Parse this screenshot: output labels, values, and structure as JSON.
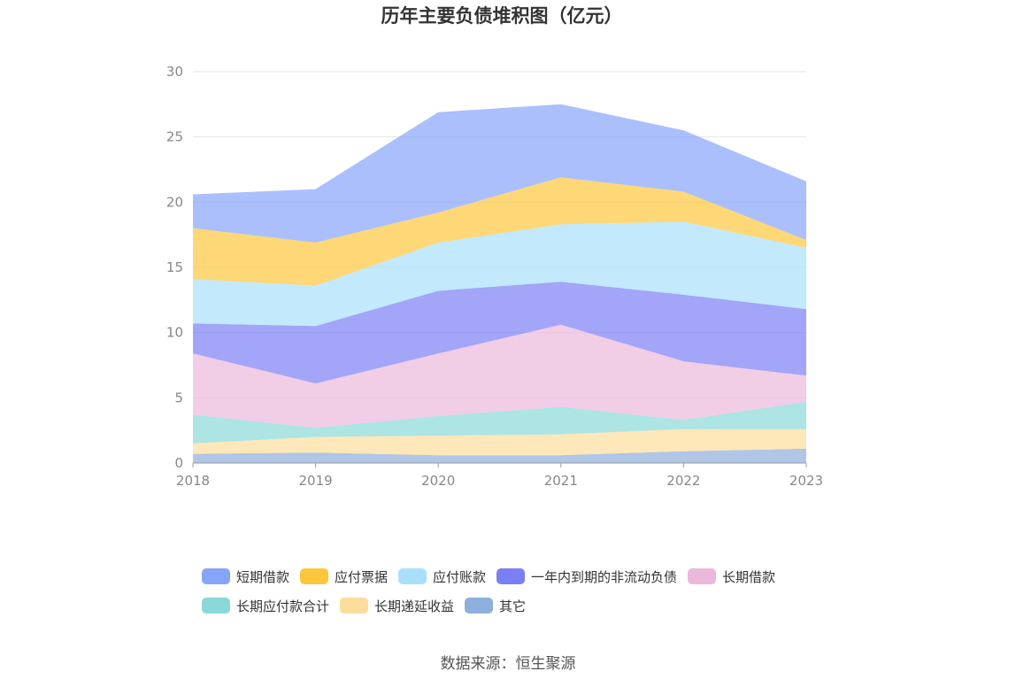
{
  "chart_data": {
    "type": "area",
    "stacked": true,
    "title": "历年主要负债堆积图（亿元）",
    "x": [
      "2018",
      "2019",
      "2020",
      "2021",
      "2022",
      "2023"
    ],
    "ylim": [
      0,
      30
    ],
    "yticks": [
      0,
      5,
      10,
      15,
      20,
      25,
      30
    ],
    "grid": true,
    "legend_position": "bottom",
    "series": [
      {
        "name": "其它",
        "color": "#8eaedb",
        "values": [
          0.7,
          0.8,
          0.6,
          0.6,
          0.9,
          1.1
        ]
      },
      {
        "name": "长期递延收益",
        "color": "#fddd9b",
        "values": [
          0.8,
          1.2,
          1.5,
          1.6,
          1.7,
          1.5
        ]
      },
      {
        "name": "长期应付款合计",
        "color": "#8ad8d8",
        "values": [
          2.2,
          0.7,
          1.5,
          2.1,
          0.7,
          2.1
        ]
      },
      {
        "name": "长期借款",
        "color": "#ebb8dc",
        "values": [
          4.7,
          3.4,
          4.8,
          6.3,
          4.5,
          2.0
        ]
      },
      {
        "name": "一年内到期的非流动负债",
        "color": "#7b7ff5",
        "values": [
          2.3,
          4.4,
          4.8,
          3.3,
          5.1,
          5.1
        ]
      },
      {
        "name": "应付账款",
        "color": "#a8e0fb",
        "values": [
          3.4,
          3.1,
          3.7,
          4.4,
          5.6,
          4.7
        ]
      },
      {
        "name": "应付票据",
        "color": "#fec63d",
        "values": [
          3.9,
          3.3,
          2.3,
          3.6,
          2.3,
          0.6
        ]
      },
      {
        "name": "短期借款",
        "color": "#87a4fb",
        "values": [
          2.6,
          4.1,
          7.7,
          5.6,
          4.7,
          4.5
        ]
      }
    ],
    "legend_order": [
      "短期借款",
      "应付票据",
      "应付账款",
      "一年内到期的非流动负债",
      "长期借款",
      "长期应付款合计",
      "长期递延收益",
      "其它"
    ]
  },
  "source_text": "数据来源：恒生聚源"
}
